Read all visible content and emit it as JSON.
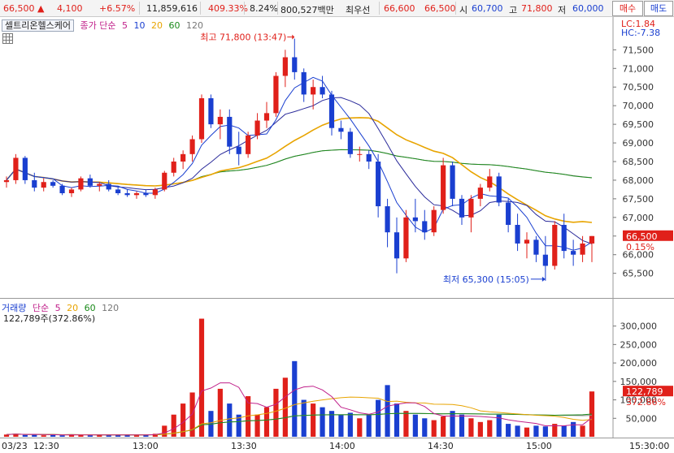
{
  "quote": {
    "price": "66,500",
    "change_arrow": "▲",
    "change": "4,100",
    "change_pct": "+6.57%",
    "volume": "11,859,616",
    "volume_ratio": "409.33%",
    "turnover": "8.24%",
    "amount": "800,527백만",
    "best_label": "최우선",
    "best_ask": "66,600",
    "best_bid": "66,500",
    "open_label": "시",
    "open": "60,700",
    "high_label": "고",
    "high": "71,800",
    "low_label": "저",
    "low": "60,000",
    "buy_button": "매수",
    "sell_button": "매도"
  },
  "chart": {
    "stock_name": "셀트리온헬스케어",
    "legend_main": "종가 단순",
    "ma_periods": [
      "5",
      "10",
      "20",
      "60",
      "120"
    ],
    "lc": "LC:1.84",
    "hc": "HC:-7.38",
    "high_annotation": "최고 71,800 (13:47)",
    "low_annotation": "최저 65,300 (15:05)",
    "current_price_tag": "66,500",
    "current_pct_tag": "0.15%",
    "price_ticks": [
      "71,500",
      "71,000",
      "70,500",
      "70,000",
      "69,500",
      "69,000",
      "68,500",
      "68,000",
      "67,500",
      "67,000",
      "66,500",
      "66,000",
      "65,500"
    ],
    "volume_legend_label": "거래량",
    "volume_legend_main": "단순",
    "volume_ma_periods": [
      "5",
      "20",
      "60",
      "120"
    ],
    "volume_current": "122,789주(372.86%)",
    "volume_tag": "122,789",
    "volume_pct_tag": "372.86%",
    "volume_ticks": [
      "300,000",
      "250,000",
      "200,000",
      "150,000",
      "100,000",
      "50,000"
    ],
    "time_labels": [
      "03/23",
      "12:30",
      "13:00",
      "13:30",
      "14:00",
      "14:30",
      "15:00",
      "15:30:00"
    ]
  },
  "colors": {
    "up": "#e0201a",
    "down": "#1a3fd0",
    "ma5": "#1a3fd0",
    "ma10": "#2a2a9a",
    "ma20": "#e8a400",
    "ma60": "#1a8a1a",
    "ma120": "#8a8a8a",
    "legend_5": "#c0208a",
    "legend_10": "#1a3fd0",
    "legend_20": "#e8a400",
    "legend_60": "#1a8a1a",
    "legend_120": "#777777"
  },
  "chart_data": {
    "type": "candlestick",
    "x_range": [
      "12:20",
      "15:20"
    ],
    "price_range": [
      65100,
      71900
    ],
    "volume_range": [
      0,
      330000
    ],
    "candles": [
      {
        "t": "12:20",
        "o": 67950,
        "h": 68100,
        "l": 67800,
        "c": 68000
      },
      {
        "t": "12:22",
        "o": 68000,
        "h": 68700,
        "l": 67900,
        "c": 68600
      },
      {
        "t": "12:24",
        "o": 68600,
        "h": 68650,
        "l": 67900,
        "c": 68000
      },
      {
        "t": "12:26",
        "o": 68000,
        "h": 68200,
        "l": 67700,
        "c": 67800
      },
      {
        "t": "12:28",
        "o": 67800,
        "h": 68050,
        "l": 67700,
        "c": 67950
      },
      {
        "t": "12:30",
        "o": 67950,
        "h": 68000,
        "l": 67800,
        "c": 67850
      },
      {
        "t": "12:32",
        "o": 67850,
        "h": 67900,
        "l": 67600,
        "c": 67650
      },
      {
        "t": "12:34",
        "o": 67650,
        "h": 67800,
        "l": 67550,
        "c": 67750
      },
      {
        "t": "12:36",
        "o": 67750,
        "h": 68100,
        "l": 67700,
        "c": 68050
      },
      {
        "t": "12:38",
        "o": 68050,
        "h": 68150,
        "l": 67800,
        "c": 67850
      },
      {
        "t": "12:40",
        "o": 67850,
        "h": 67950,
        "l": 67700,
        "c": 67900
      },
      {
        "t": "12:42",
        "o": 67900,
        "h": 68000,
        "l": 67700,
        "c": 67750
      },
      {
        "t": "12:44",
        "o": 67750,
        "h": 67850,
        "l": 67600,
        "c": 67650
      },
      {
        "t": "12:46",
        "o": 67650,
        "h": 67750,
        "l": 67550,
        "c": 67600
      },
      {
        "t": "12:48",
        "o": 67600,
        "h": 67700,
        "l": 67500,
        "c": 67650
      },
      {
        "t": "12:50",
        "o": 67650,
        "h": 67750,
        "l": 67550,
        "c": 67600
      },
      {
        "t": "12:52",
        "o": 67600,
        "h": 67800,
        "l": 67500,
        "c": 67750
      },
      {
        "t": "12:54",
        "o": 67750,
        "h": 68250,
        "l": 67700,
        "c": 68200
      },
      {
        "t": "12:56",
        "o": 68200,
        "h": 68600,
        "l": 68100,
        "c": 68500
      },
      {
        "t": "12:58",
        "o": 68500,
        "h": 68800,
        "l": 68300,
        "c": 68700
      },
      {
        "t": "13:00",
        "o": 68700,
        "h": 69200,
        "l": 68500,
        "c": 69100
      },
      {
        "t": "13:02",
        "o": 69100,
        "h": 70300,
        "l": 69000,
        "c": 70200
      },
      {
        "t": "13:04",
        "o": 70200,
        "h": 70300,
        "l": 69400,
        "c": 69500
      },
      {
        "t": "13:06",
        "o": 69500,
        "h": 69900,
        "l": 69100,
        "c": 69700
      },
      {
        "t": "13:08",
        "o": 69700,
        "h": 69900,
        "l": 68700,
        "c": 68900
      },
      {
        "t": "13:10",
        "o": 68900,
        "h": 69300,
        "l": 68400,
        "c": 68700
      },
      {
        "t": "13:12",
        "o": 68700,
        "h": 69300,
        "l": 68600,
        "c": 69200
      },
      {
        "t": "13:14",
        "o": 69200,
        "h": 69800,
        "l": 69100,
        "c": 69600
      },
      {
        "t": "13:16",
        "o": 69600,
        "h": 70100,
        "l": 69400,
        "c": 69800
      },
      {
        "t": "13:18",
        "o": 69800,
        "h": 70900,
        "l": 69700,
        "c": 70800
      },
      {
        "t": "13:20",
        "o": 70800,
        "h": 71500,
        "l": 70500,
        "c": 71300
      },
      {
        "t": "13:22",
        "o": 71300,
        "h": 71800,
        "l": 70700,
        "c": 70900
      },
      {
        "t": "13:24",
        "o": 70900,
        "h": 71000,
        "l": 70100,
        "c": 70300
      },
      {
        "t": "13:26",
        "o": 70300,
        "h": 70700,
        "l": 69900,
        "c": 70500
      },
      {
        "t": "13:28",
        "o": 70500,
        "h": 70800,
        "l": 70200,
        "c": 70300
      },
      {
        "t": "13:30",
        "o": 70300,
        "h": 70400,
        "l": 69200,
        "c": 69400
      },
      {
        "t": "13:32",
        "o": 69400,
        "h": 69600,
        "l": 69100,
        "c": 69300
      },
      {
        "t": "13:34",
        "o": 69300,
        "h": 69400,
        "l": 68600,
        "c": 68700
      },
      {
        "t": "13:36",
        "o": 68700,
        "h": 68900,
        "l": 68500,
        "c": 68700
      },
      {
        "t": "13:38",
        "o": 68700,
        "h": 68800,
        "l": 68300,
        "c": 68500
      },
      {
        "t": "13:40",
        "o": 68500,
        "h": 68700,
        "l": 67000,
        "c": 67300
      },
      {
        "t": "13:42",
        "o": 67300,
        "h": 67500,
        "l": 66200,
        "c": 66600
      },
      {
        "t": "13:44",
        "o": 66600,
        "h": 67000,
        "l": 65500,
        "c": 65900
      },
      {
        "t": "13:46",
        "o": 65900,
        "h": 67200,
        "l": 65800,
        "c": 67000
      },
      {
        "t": "13:48",
        "o": 67000,
        "h": 67500,
        "l": 66600,
        "c": 66900
      },
      {
        "t": "13:50",
        "o": 66900,
        "h": 67200,
        "l": 66400,
        "c": 66600
      },
      {
        "t": "13:52",
        "o": 66600,
        "h": 67300,
        "l": 66500,
        "c": 67200
      },
      {
        "t": "13:54",
        "o": 67200,
        "h": 68600,
        "l": 67100,
        "c": 68400
      },
      {
        "t": "13:56",
        "o": 68400,
        "h": 68500,
        "l": 67300,
        "c": 67500
      },
      {
        "t": "13:58",
        "o": 67500,
        "h": 67600,
        "l": 66800,
        "c": 67000
      },
      {
        "t": "14:00",
        "o": 67000,
        "h": 67600,
        "l": 66600,
        "c": 67500
      },
      {
        "t": "14:02",
        "o": 67500,
        "h": 67900,
        "l": 67300,
        "c": 67800
      },
      {
        "t": "14:04",
        "o": 67800,
        "h": 68300,
        "l": 67700,
        "c": 68100
      },
      {
        "t": "14:06",
        "o": 68100,
        "h": 68200,
        "l": 67300,
        "c": 67400
      },
      {
        "t": "14:08",
        "o": 67400,
        "h": 67500,
        "l": 66600,
        "c": 66800
      },
      {
        "t": "14:10",
        "o": 66800,
        "h": 67100,
        "l": 66100,
        "c": 66300
      },
      {
        "t": "14:12",
        "o": 66300,
        "h": 66600,
        "l": 65900,
        "c": 66400
      },
      {
        "t": "14:14",
        "o": 66400,
        "h": 66500,
        "l": 65800,
        "c": 66000
      },
      {
        "t": "14:16",
        "o": 66000,
        "h": 66500,
        "l": 65300,
        "c": 65700
      },
      {
        "t": "14:18",
        "o": 65700,
        "h": 66900,
        "l": 65600,
        "c": 66800
      },
      {
        "t": "14:20",
        "o": 66800,
        "h": 67100,
        "l": 65900,
        "c": 66100
      },
      {
        "t": "14:22",
        "o": 66100,
        "h": 66400,
        "l": 65700,
        "c": 66000
      },
      {
        "t": "14:24",
        "o": 66000,
        "h": 66500,
        "l": 65800,
        "c": 66300
      },
      {
        "t": "14:26",
        "o": 66300,
        "h": 66500,
        "l": 65800,
        "c": 66500
      }
    ],
    "volumes": [
      6000,
      8000,
      5000,
      7000,
      4000,
      5000,
      4000,
      6000,
      5000,
      4000,
      5000,
      4000,
      6000,
      5000,
      4000,
      6000,
      8000,
      30000,
      60000,
      90000,
      120000,
      320000,
      70000,
      130000,
      90000,
      60000,
      110000,
      60000,
      80000,
      130000,
      160000,
      205000,
      100000,
      90000,
      80000,
      70000,
      60000,
      65000,
      50000,
      60000,
      100000,
      140000,
      90000,
      70000,
      60000,
      50000,
      45000,
      55000,
      70000,
      60000,
      50000,
      40000,
      45000,
      60000,
      35000,
      30000,
      25000,
      30000,
      28000,
      35000,
      30000,
      40000,
      30000,
      122789
    ],
    "moving_averages": [
      "5",
      "10",
      "20",
      "60",
      "120"
    ]
  }
}
